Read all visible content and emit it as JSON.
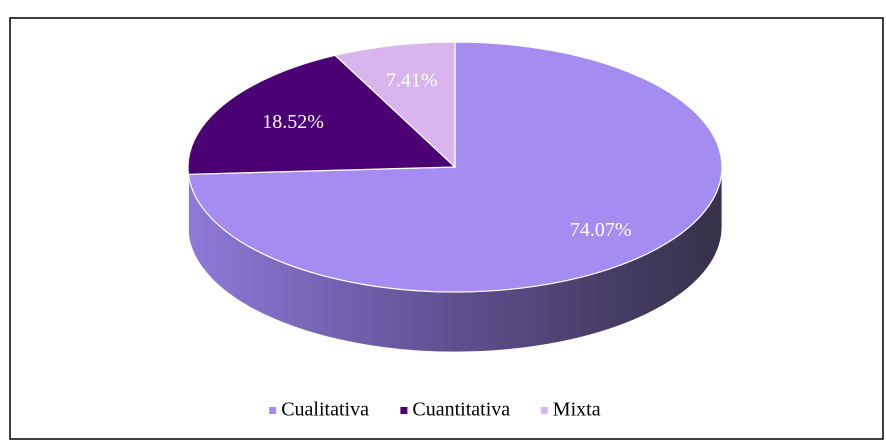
{
  "chart_data": {
    "type": "pie3d",
    "categories": [
      "Cualitativa",
      "Cuantitativa",
      "Mixta"
    ],
    "series": [
      {
        "values": [
          74.07,
          18.52,
          7.41
        ],
        "value_labels": [
          "74.07%",
          "18.52%",
          "7.41%"
        ],
        "colors": [
          "#a48cf0",
          "#4b0073",
          "#d9b5ee"
        ]
      }
    ],
    "legend": "bottom"
  }
}
